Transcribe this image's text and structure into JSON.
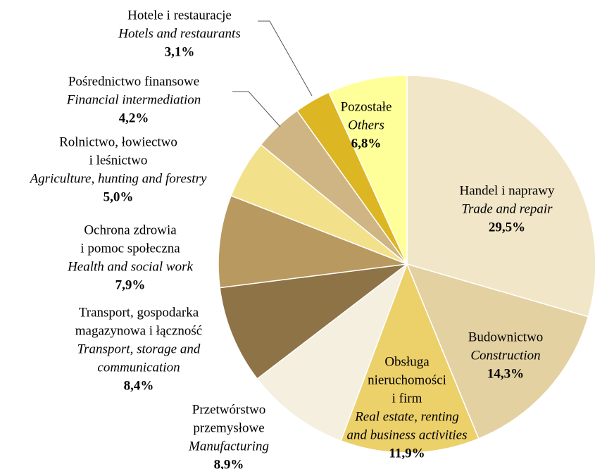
{
  "chart_data": {
    "type": "pie",
    "labels": [
      {
        "pl": [
          "Handel i naprawy"
        ],
        "en": [
          "Trade and repair"
        ]
      },
      {
        "pl": [
          "Budownictwo"
        ],
        "en": [
          "Construction"
        ]
      },
      {
        "pl": [
          "Obsługa",
          "nieruchomości",
          "i firm"
        ],
        "en": [
          "Real estate, renting",
          "and business activities"
        ]
      },
      {
        "pl": [
          "Przetwórstwo",
          "przemysłowe"
        ],
        "en": [
          "Manufacturing"
        ]
      },
      {
        "pl": [
          "Transport, gospodarka",
          "magazynowa i łączność"
        ],
        "en": [
          "Transport, storage and",
          "communication"
        ]
      },
      {
        "pl": [
          "Ochrona zdrowia",
          "i pomoc społeczna"
        ],
        "en": [
          "Health and social work"
        ]
      },
      {
        "pl": [
          "Rolnictwo, łowiectwo",
          "i leśnictwo"
        ],
        "en": [
          "Agriculture, hunting and forestry"
        ]
      },
      {
        "pl": [
          "Pośrednictwo finansowe"
        ],
        "en": [
          "Financial intermediation"
        ]
      },
      {
        "pl": [
          "Hotele i restauracje"
        ],
        "en": [
          "Hotels and restaurants"
        ]
      },
      {
        "pl": [
          "Pozostałe"
        ],
        "en": [
          "Others"
        ]
      }
    ],
    "values": [
      29.5,
      14.3,
      11.9,
      8.9,
      8.4,
      7.9,
      5.0,
      4.2,
      3.1,
      6.8
    ],
    "value_labels": [
      "29,5%",
      "14,3%",
      "11,9%",
      "8,9%",
      "8,4%",
      "7,9%",
      "5,0%",
      "4,2%",
      "3,1%",
      "6,8%"
    ],
    "colors": [
      "#f2e6c8",
      "#e3d1a2",
      "#ecd06a",
      "#f5efe0",
      "#8e7346",
      "#b8995f",
      "#f2e08a",
      "#cfb583",
      "#ddb623",
      "#ffff99"
    ]
  }
}
